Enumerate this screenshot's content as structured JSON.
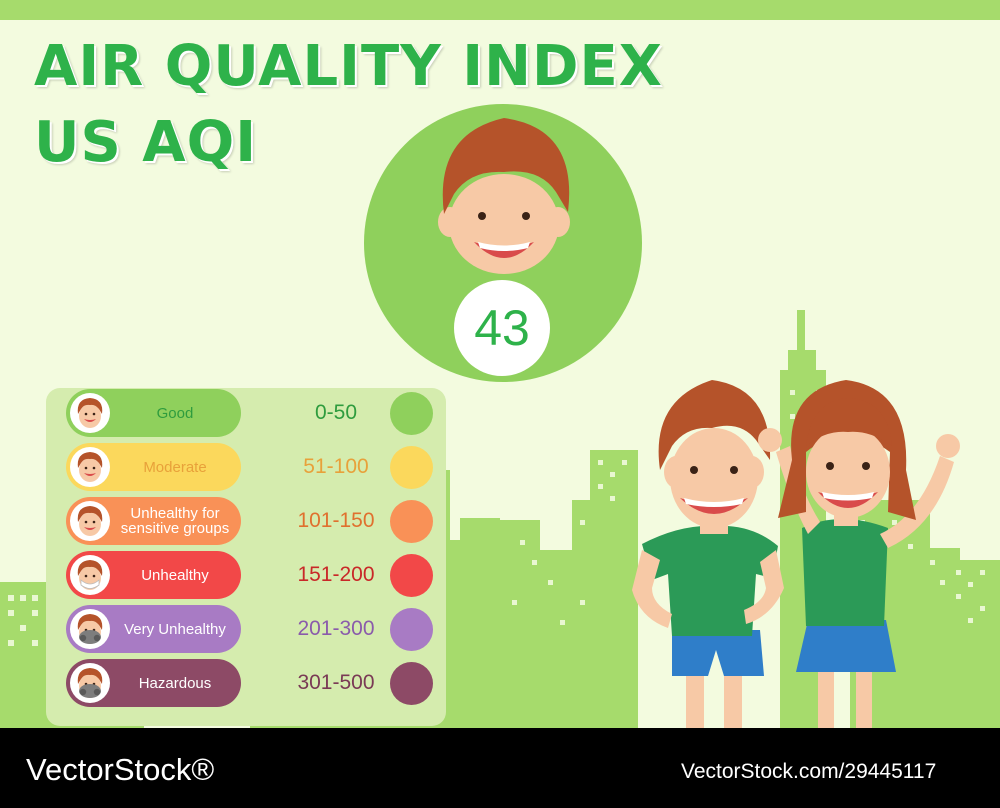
{
  "title": {
    "line1": "AIR QUALITY INDEX",
    "line2": "US AQI"
  },
  "current": {
    "value": "43",
    "level": "Good",
    "color": "#8fd05c"
  },
  "colors": {
    "title": "#2eb24a",
    "background": "#f3fbdf",
    "skyline": "#a6db6c",
    "footer": "#000000"
  },
  "legend": {
    "items": [
      {
        "label": "Good",
        "range": "0-50",
        "pill_color": "#8fd05c",
        "dot_color": "#8fd05c",
        "text_color": "#2f9c3e",
        "range_color": "#2f9c3e",
        "face": "plain"
      },
      {
        "label": "Moderate",
        "range": "51-100",
        "pill_color": "#fbd85c",
        "dot_color": "#fbd85c",
        "text_color": "#e8a13a",
        "range_color": "#e8a13a",
        "face": "plain"
      },
      {
        "label": "Unhealthy for sensitive groups",
        "range": "101-150",
        "pill_color": "#f99157",
        "dot_color": "#f99157",
        "text_color": "#ffffff",
        "range_color": "#e0702e",
        "face": "plain"
      },
      {
        "label": "Unhealthy",
        "range": "151-200",
        "pill_color": "#f24848",
        "dot_color": "#f24848",
        "text_color": "#ffffff",
        "range_color": "#c92828",
        "face": "mask"
      },
      {
        "label": "Very Unhealthy",
        "range": "201-300",
        "pill_color": "#a87bc4",
        "dot_color": "#a87bc4",
        "text_color": "#ffffff",
        "range_color": "#8a5bab",
        "face": "respirator"
      },
      {
        "label": "Hazardous",
        "range": "301-500",
        "pill_color": "#8d4a66",
        "dot_color": "#8d4a66",
        "text_color": "#ffffff",
        "range_color": "#7a3a55",
        "face": "respirator"
      }
    ]
  },
  "footer": {
    "brand": "VectorStock®",
    "image_id": "VectorStock.com/29445117"
  }
}
